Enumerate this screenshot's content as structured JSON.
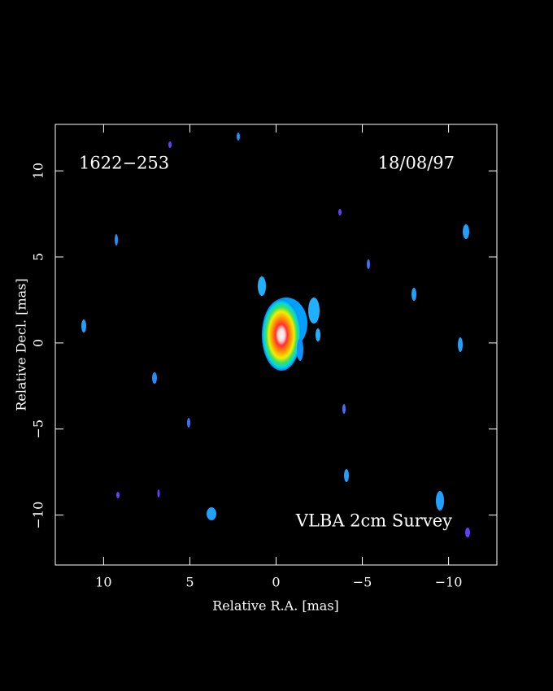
{
  "chart_data": {
    "type": "image",
    "title": "1622−253",
    "date": "18/08/97",
    "annotation": "VLBA 2cm Survey",
    "x_label": "Relative R.A. [mas]",
    "y_label": "Relative Decl. [mas]",
    "xlim": [
      12.8,
      -12.8
    ],
    "ylim": [
      -12.9,
      12.7
    ],
    "xticks": [
      10,
      5,
      0,
      {
        "value": -5,
        "label": "−5"
      },
      {
        "value": -10,
        "label": "−10"
      }
    ],
    "yticks": [
      {
        "value": -10,
        "label": "−10"
      },
      {
        "value": -5,
        "label": "−5"
      },
      0,
      5,
      10
    ]
  }
}
